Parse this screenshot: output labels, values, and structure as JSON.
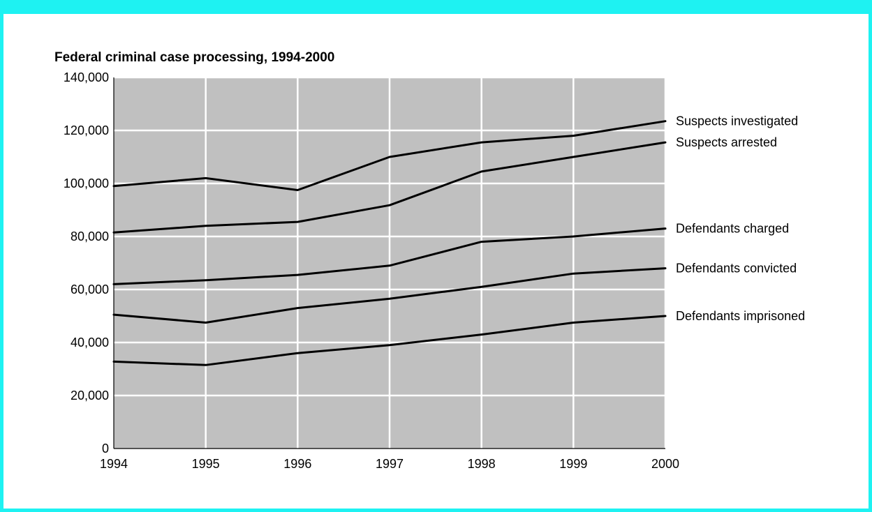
{
  "page": {
    "border_color": "#1ef2f2"
  },
  "chart_data": {
    "type": "line",
    "title": "Federal criminal case processing, 1994-2000",
    "xlabel": "",
    "ylabel": "",
    "x": [
      1994,
      1995,
      1996,
      1997,
      1998,
      1999,
      2000
    ],
    "x_tick_labels": [
      "1994",
      "1995",
      "1996",
      "1997",
      "1998",
      "1999",
      "2000"
    ],
    "ylim": [
      0,
      140000
    ],
    "y_ticks": [
      0,
      20000,
      40000,
      60000,
      80000,
      100000,
      120000,
      140000
    ],
    "y_tick_labels": [
      "0",
      "20,000",
      "40,000",
      "60,000",
      "80,000",
      "100,000",
      "120,000",
      "140,000"
    ],
    "grid": true,
    "plot_background": "#c0c0c0",
    "grid_color": "#ffffff",
    "line_color": "#000000",
    "legend": "direct labels at right end of lines",
    "series": [
      {
        "name": "Suspects investigated",
        "values": [
          99000,
          102000,
          97500,
          110000,
          115500,
          118000,
          123500
        ]
      },
      {
        "name": "Suspects arrested",
        "values": [
          81500,
          84000,
          85500,
          91800,
          104500,
          110000,
          115500
        ]
      },
      {
        "name": "Defendants charged",
        "values": [
          62000,
          63500,
          65500,
          69000,
          78000,
          80000,
          83000
        ]
      },
      {
        "name": "Defendants convicted",
        "values": [
          50500,
          47500,
          53000,
          56500,
          61000,
          66000,
          68000
        ]
      },
      {
        "name": "Defendants imprisoned",
        "values": [
          32800,
          31500,
          36000,
          39000,
          43000,
          47500,
          50000
        ]
      }
    ]
  }
}
